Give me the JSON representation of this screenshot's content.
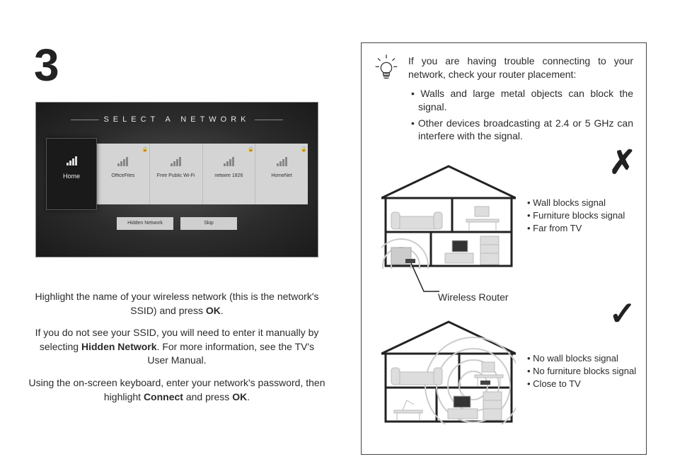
{
  "step_number": "3",
  "tv": {
    "title": "SELECT A NETWORK",
    "networks": [
      {
        "label": "Home",
        "selected": true,
        "locked": false
      },
      {
        "label": "OfficeFiles",
        "selected": false,
        "locked": true
      },
      {
        "label": "Free Public Wi-Fi",
        "selected": false,
        "locked": false
      },
      {
        "label": "netwire 1826",
        "selected": false,
        "locked": true
      },
      {
        "label": "HomeNet",
        "selected": false,
        "locked": true
      }
    ],
    "hidden_button": "Hidden Network",
    "skip_button": "Skip"
  },
  "instructions": {
    "p1a": "Highlight the name of your wireless network (this is the network's SSID) and press ",
    "p1_bold": "OK",
    "p1b": ".",
    "p2a": "If you do not see your SSID, you will need to enter it manually by selecting ",
    "p2_bold": "Hidden Network",
    "p2b": ". For more information, see the TV's User Manual.",
    "p3a": "Using the on-screen keyboard, enter your network's password, then highlight ",
    "p3_bold1": "Connect",
    "p3_mid": " and press ",
    "p3_bold2": "OK",
    "p3b": "."
  },
  "tip": {
    "lead": "If you are having trouble connecting to your network, check your router placement:",
    "bullets": [
      "Walls and large metal objects can block the signal.",
      "Other devices broadcasting at 2.4 or 5 GHz can interfere with the signal."
    ]
  },
  "router_label": "Wireless Router",
  "bad_points": [
    "Wall blocks signal",
    "Furniture blocks signal",
    "Far from TV"
  ],
  "good_points": [
    "No wall blocks signal",
    "No furniture blocks signal",
    "Close to TV"
  ],
  "colors": {
    "text": "#2b2b2b",
    "border": "#444444",
    "tv_bg_dark": "#1a1a1a",
    "tv_card": "#d4d4d4",
    "house_stroke": "#222222",
    "house_fill": "#e7e7e7"
  }
}
